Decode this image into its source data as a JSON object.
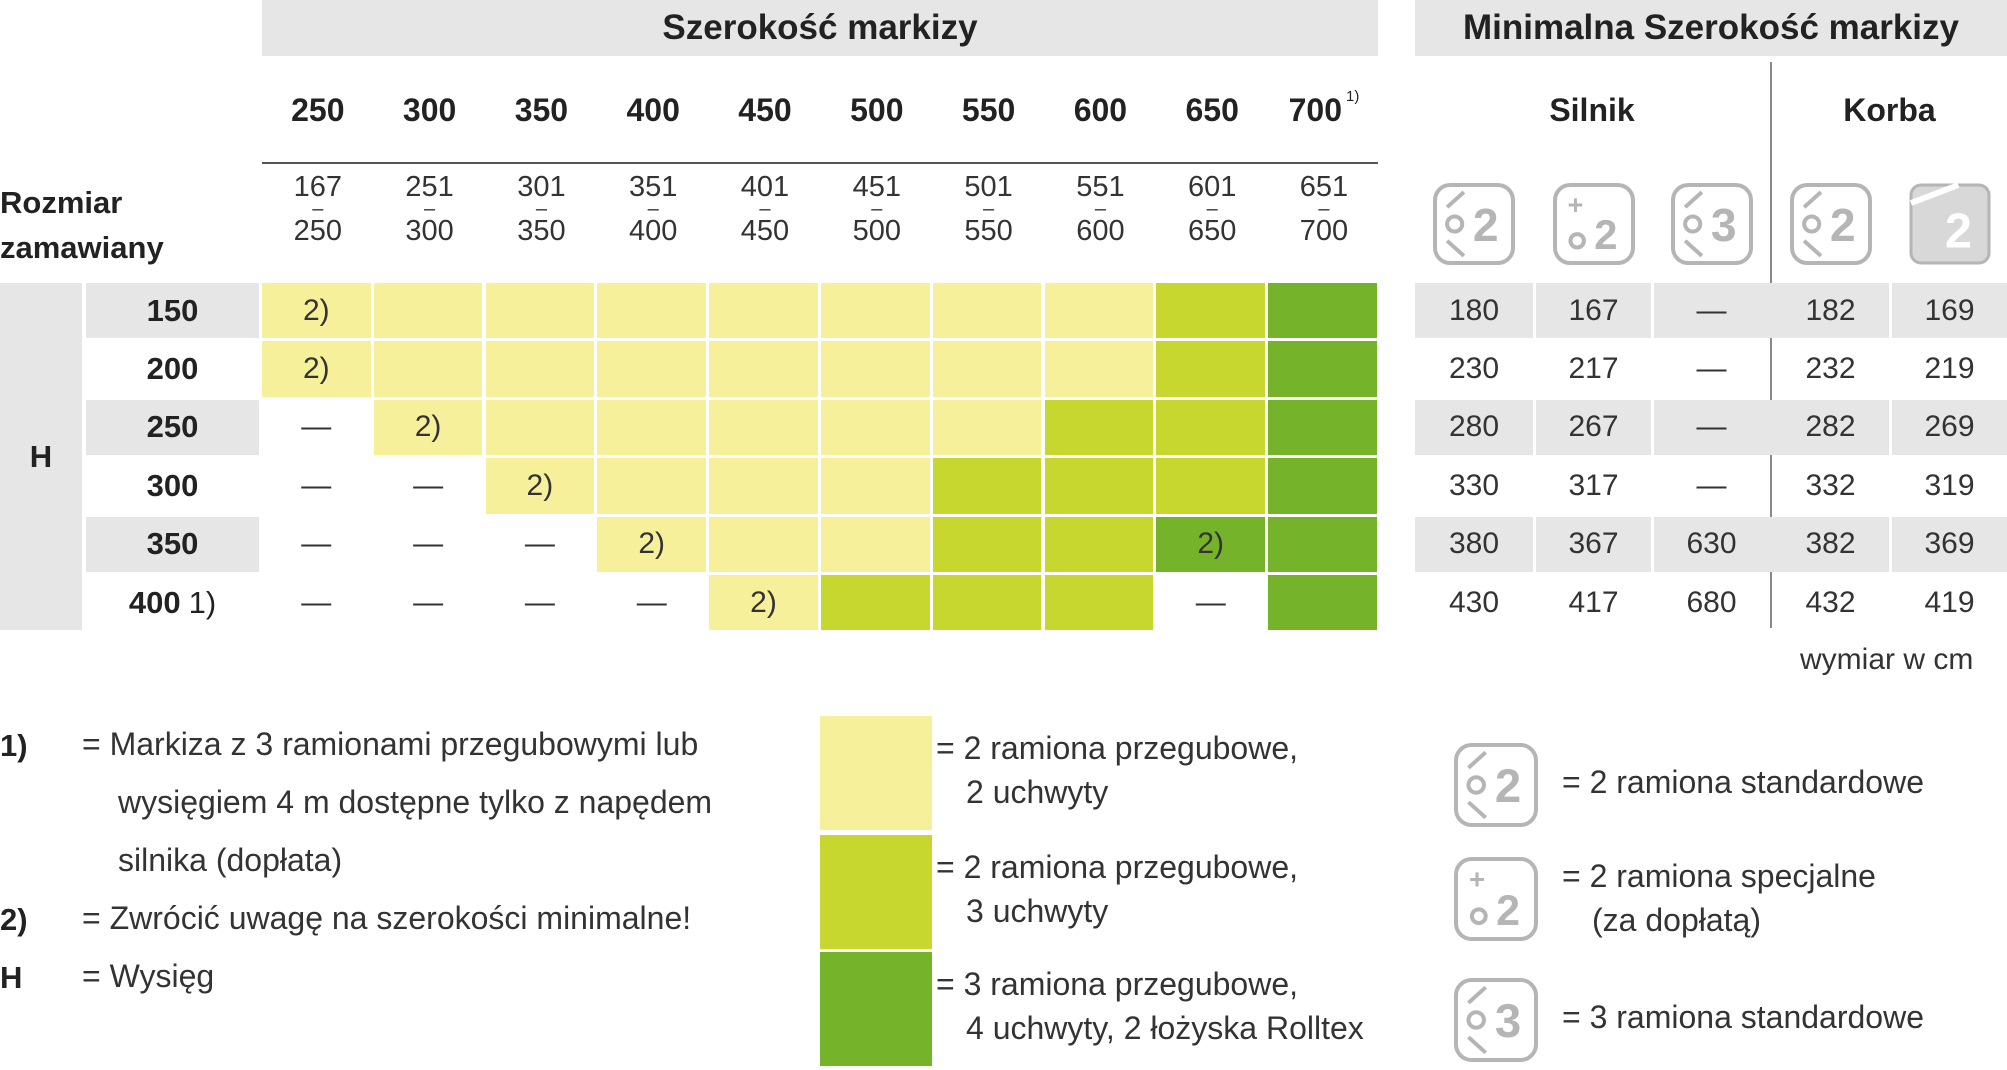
{
  "header": {
    "width_title": "Szerokość markizy",
    "min_title": "Minimalna Szerokość markizy",
    "silnik": "Silnik",
    "korba": "Korba",
    "order_size_line1": "Rozmiar",
    "order_size_line2": "zamawiany"
  },
  "widths": [
    {
      "label": "250",
      "from": "167",
      "to": "250"
    },
    {
      "label": "300",
      "from": "251",
      "to": "300"
    },
    {
      "label": "350",
      "from": "301",
      "to": "350"
    },
    {
      "label": "400",
      "from": "351",
      "to": "400"
    },
    {
      "label": "450",
      "from": "401",
      "to": "450"
    },
    {
      "label": "500",
      "from": "451",
      "to": "500"
    },
    {
      "label": "550",
      "from": "501",
      "to": "550"
    },
    {
      "label": "600",
      "from": "551",
      "to": "600"
    },
    {
      "label": "650",
      "from": "601",
      "to": "650"
    },
    {
      "label": "700",
      "from": "651",
      "to": "700"
    }
  ],
  "width_700_note": "1)",
  "range_dash": "–",
  "h_label": "H",
  "rows": [
    {
      "h": "150",
      "note": "",
      "cells": [
        [
          "y",
          "2)"
        ],
        [
          "y",
          ""
        ],
        [
          "y",
          ""
        ],
        [
          "y",
          ""
        ],
        [
          "y",
          ""
        ],
        [
          "y",
          ""
        ],
        [
          "y",
          ""
        ],
        [
          "y",
          ""
        ],
        [
          "l",
          ""
        ],
        [
          "g",
          ""
        ]
      ],
      "min": [
        "180",
        "167",
        "—",
        "182",
        "169"
      ]
    },
    {
      "h": "200",
      "note": "",
      "cells": [
        [
          "y",
          "2)"
        ],
        [
          "y",
          ""
        ],
        [
          "y",
          ""
        ],
        [
          "y",
          ""
        ],
        [
          "y",
          ""
        ],
        [
          "y",
          ""
        ],
        [
          "y",
          ""
        ],
        [
          "y",
          ""
        ],
        [
          "l",
          ""
        ],
        [
          "g",
          ""
        ]
      ],
      "min": [
        "230",
        "217",
        "—",
        "232",
        "219"
      ]
    },
    {
      "h": "250",
      "note": "",
      "cells": [
        [
          "n",
          "—"
        ],
        [
          "y",
          "2)"
        ],
        [
          "y",
          ""
        ],
        [
          "y",
          ""
        ],
        [
          "y",
          ""
        ],
        [
          "y",
          ""
        ],
        [
          "y",
          ""
        ],
        [
          "l",
          ""
        ],
        [
          "l",
          ""
        ],
        [
          "g",
          ""
        ]
      ],
      "min": [
        "280",
        "267",
        "—",
        "282",
        "269"
      ]
    },
    {
      "h": "300",
      "note": "",
      "cells": [
        [
          "n",
          "—"
        ],
        [
          "n",
          "—"
        ],
        [
          "y",
          "2)"
        ],
        [
          "y",
          ""
        ],
        [
          "y",
          ""
        ],
        [
          "y",
          ""
        ],
        [
          "l",
          ""
        ],
        [
          "l",
          ""
        ],
        [
          "l",
          ""
        ],
        [
          "g",
          ""
        ]
      ],
      "min": [
        "330",
        "317",
        "—",
        "332",
        "319"
      ]
    },
    {
      "h": "350",
      "note": "",
      "cells": [
        [
          "n",
          "—"
        ],
        [
          "n",
          "—"
        ],
        [
          "n",
          "—"
        ],
        [
          "y",
          "2)"
        ],
        [
          "y",
          ""
        ],
        [
          "y",
          ""
        ],
        [
          "l",
          ""
        ],
        [
          "l",
          ""
        ],
        [
          "g",
          "2)"
        ],
        [
          "g",
          ""
        ]
      ],
      "min": [
        "380",
        "367",
        "630",
        "382",
        "369"
      ]
    },
    {
      "h": "400",
      "note": "1)",
      "cells": [
        [
          "n",
          "—"
        ],
        [
          "n",
          "—"
        ],
        [
          "n",
          "—"
        ],
        [
          "n",
          "—"
        ],
        [
          "y",
          "2)"
        ],
        [
          "l",
          ""
        ],
        [
          "l",
          ""
        ],
        [
          "l",
          ""
        ],
        [
          "n",
          "—"
        ],
        [
          "g",
          ""
        ]
      ],
      "min": [
        "430",
        "417",
        "680",
        "432",
        "419"
      ]
    }
  ],
  "unit_note": "wymiar w cm",
  "footnotes": [
    {
      "key": "1)",
      "lines": [
        "= Markiza z 3 ramionami przegubowymi lub",
        "wysięgiem 4 m dostępne tylko z napędem",
        "silnika (dopłata)"
      ]
    },
    {
      "key": "2)",
      "lines": [
        "= Zwrócić uwagę na szerokości minimalne!"
      ]
    },
    {
      "key": "H",
      "lines": [
        "=  Wysięg"
      ]
    }
  ],
  "color_legend": [
    {
      "color": "#f7f09b",
      "lines": [
        "= 2 ramiona przegubowe,",
        "2 uchwyty"
      ]
    },
    {
      "color": "#c8d72f",
      "lines": [
        "= 2 ramiona przegubowe,",
        "3 uchwyty"
      ]
    },
    {
      "color": "#74b32a",
      "lines": [
        "= 3 ramiona przegubowe,",
        "4 uchwyty, 2 łożyska Rolltex"
      ]
    }
  ],
  "icon_legend": [
    {
      "icon": "arm-2-standard-icon",
      "lines": [
        "= 2 ramiona standardowe"
      ]
    },
    {
      "icon": "arm-2-special-icon",
      "lines": [
        "= 2 ramiona specjalne",
        "(za dopłatą)"
      ]
    },
    {
      "icon": "arm-3-standard-icon",
      "lines": [
        "= 3 ramiona standardowe"
      ]
    }
  ],
  "colors": {
    "yellow": "#f7f09b",
    "lime": "#c8d72f",
    "green": "#74b32a",
    "band": "#e6e6e6"
  }
}
